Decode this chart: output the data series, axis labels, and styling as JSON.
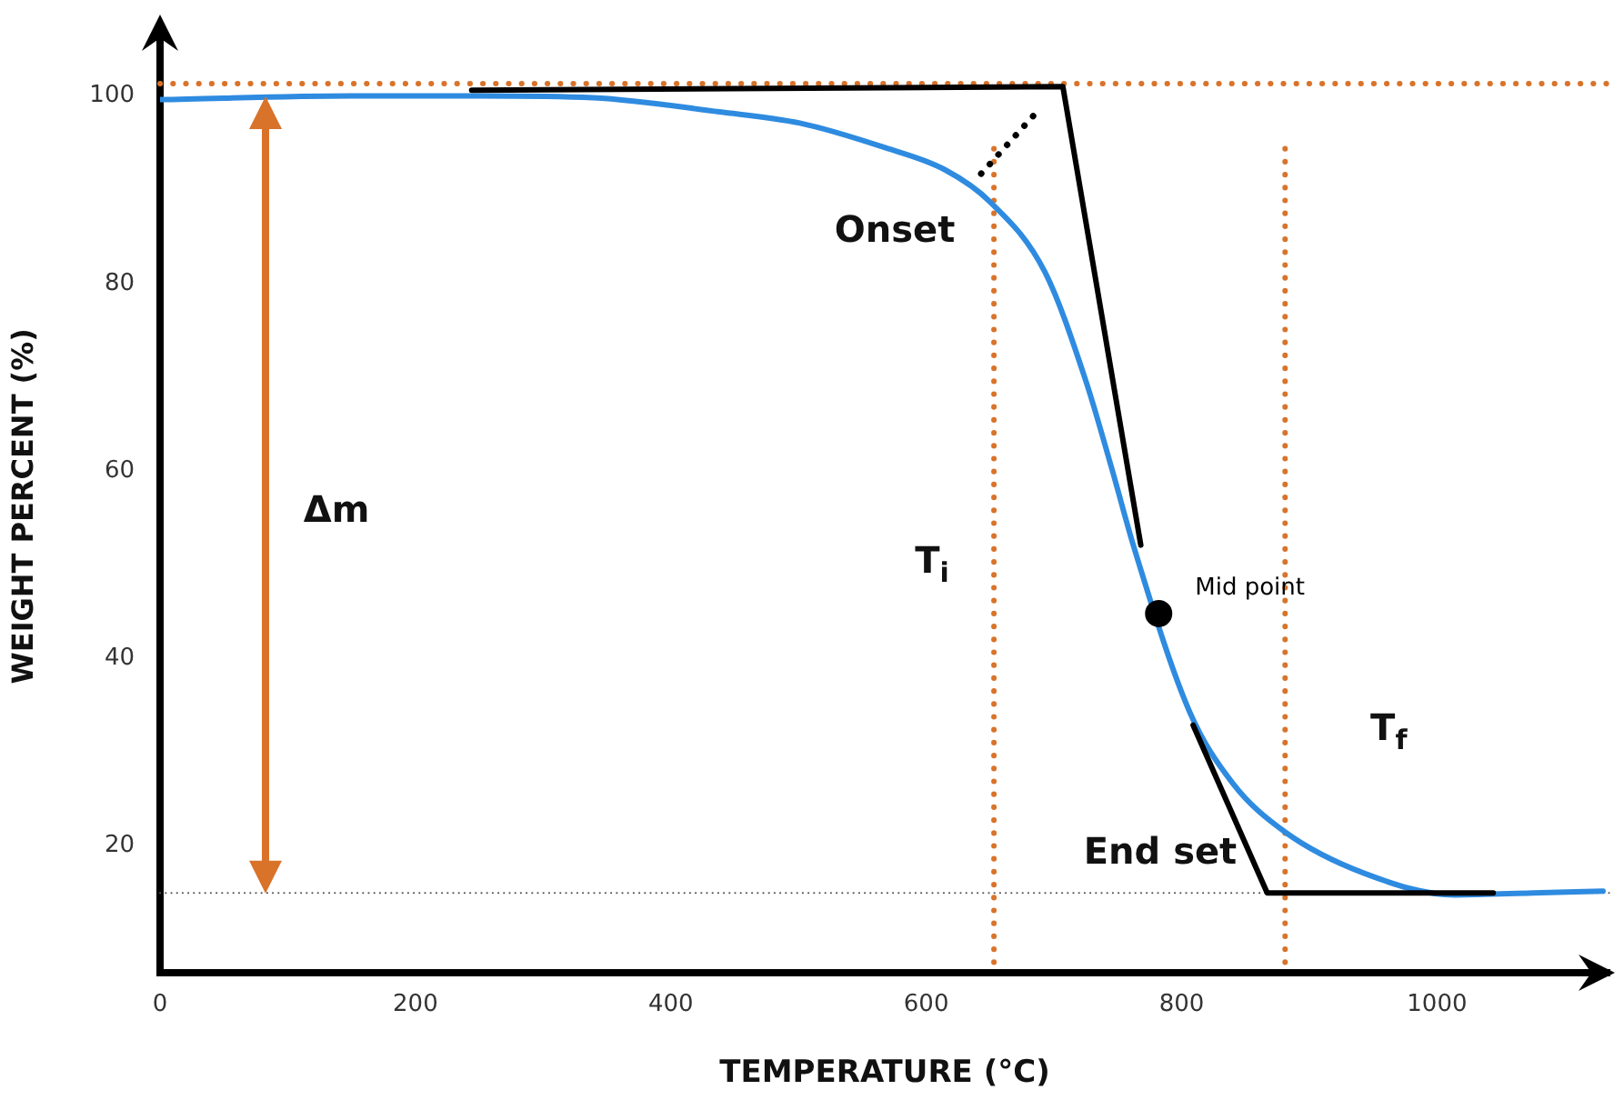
{
  "chart_data": {
    "type": "line",
    "xlabel": "TEMPERATURE (°C)",
    "ylabel": "WEIGHT PERCENT (%)",
    "xlim": [
      0,
      1135
    ],
    "ylim": [
      6.5,
      106
    ],
    "xticks": [
      0,
      200,
      400,
      600,
      800,
      1000
    ],
    "yticks": [
      20,
      40,
      60,
      80,
      100
    ],
    "grid": false,
    "legend": false,
    "series": [
      {
        "color": "#2e8be0",
        "line_style": "solid",
        "marker": "none",
        "x": [
          0,
          150,
          250,
          339,
          438,
          501,
          565,
          615,
          650,
          693,
          725,
          745,
          763,
          782,
          806,
          840,
          881,
          943,
          1014,
          1075,
          1130
        ],
        "values": [
          99.6,
          100,
          100,
          99.8,
          98.3,
          97.1,
          94.6,
          92.1,
          88.7,
          81.2,
          69.6,
          60.4,
          51.7,
          null,
          34.4,
          26.7,
          21.5,
          17.1,
          14.8,
          15.0,
          15.2
        ]
      },
      {
        "color": "#000000",
        "line_style": "solid",
        "marker": "none",
        "x": [
          244,
          707,
          768
        ],
        "values": [
          100.6,
          101,
          52.1
        ]
      },
      {
        "color": "#000000",
        "line_style": "solid",
        "marker": "none",
        "x": [
          809,
          867,
          1044
        ],
        "values": [
          32.9,
          15,
          15
        ]
      },
      {
        "color": "#000000",
        "line_style": "dotted",
        "marker": "none",
        "x": [
          643,
          688
        ],
        "values": [
          91.7,
          98.5
        ]
      },
      {
        "type": "scatter",
        "name": "Mid point",
        "color": "#000000",
        "marker": "circle",
        "x": [
          782
        ],
        "values": [
          44.8
        ]
      }
    ],
    "ref_lines": [
      {
        "axis": "y",
        "value": 101.3,
        "color": "#d9732a",
        "line_style": "dotted"
      },
      {
        "axis": "y",
        "value": 15,
        "color": "#555555",
        "line_style": "dotted"
      },
      {
        "axis": "x",
        "value": 653,
        "color": "#d9732a",
        "line_style": "dotted",
        "label": "T$_{i}$"
      },
      {
        "axis": "x",
        "value": 881,
        "color": "#d9732a",
        "line_style": "dotted",
        "label": "T$_{f}$"
      }
    ],
    "annotations": [
      "Δm",
      "Onset",
      "End set"
    ]
  }
}
